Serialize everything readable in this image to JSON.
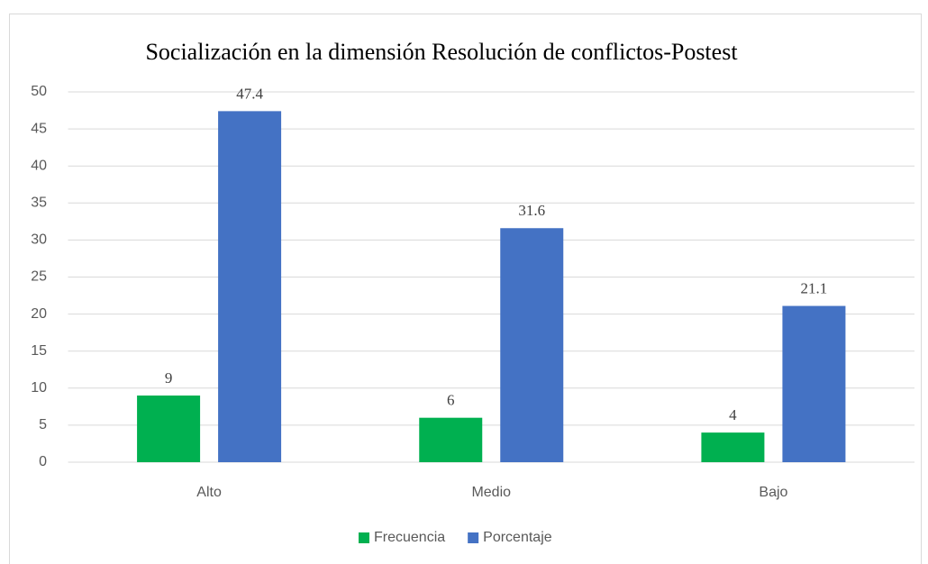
{
  "chart_data": {
    "type": "bar",
    "title": "Socialización en la dimensión Resolución de conflictos-Postest",
    "categories": [
      "Alto",
      "Medio",
      "Bajo"
    ],
    "series": [
      {
        "name": "Frecuencia",
        "color": "#00b050",
        "values": [
          9,
          6,
          4
        ]
      },
      {
        "name": "Porcentaje",
        "color": "#4472c4",
        "values": [
          47.4,
          31.6,
          21.1
        ]
      }
    ],
    "ylim": [
      0,
      50
    ],
    "yticks": [
      0,
      5,
      10,
      15,
      20,
      25,
      30,
      35,
      40,
      45,
      50
    ],
    "grid": true,
    "legend": "bottom"
  }
}
